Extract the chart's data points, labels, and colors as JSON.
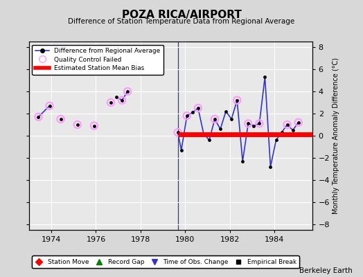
{
  "title": "POZA RICA/AIRPORT",
  "subtitle": "Difference of Station Temperature Data from Regional Average",
  "ylabel": "Monthly Temperature Anomaly Difference (°C)",
  "credit": "Berkeley Earth",
  "xlim": [
    1973.0,
    1985.7
  ],
  "ylim": [
    -8.5,
    8.5
  ],
  "yticks": [
    -8,
    -6,
    -4,
    -2,
    0,
    2,
    4,
    6,
    8
  ],
  "xticks": [
    1974,
    1976,
    1978,
    1980,
    1982,
    1984
  ],
  "bg_color": "#d8d8d8",
  "plot_bg": "#e8e8e8",
  "grid_color": "#ffffff",
  "line_color": "#3333cc",
  "marker_color": "black",
  "qc_color": "#ff99ff",
  "bias_color": "red",
  "bias_start": 1979.67,
  "bias_end": 1985.7,
  "bias_value": 0.12,
  "obs_change_x": 1979.67,
  "isolated_segments": [
    [
      [
        1973.42,
        1.7
      ],
      [
        1973.92,
        2.7
      ]
    ],
    [
      [
        1976.92,
        3.5
      ],
      [
        1977.17,
        3.2
      ],
      [
        1977.42,
        4.0
      ]
    ]
  ],
  "isolated_points": [
    [
      1973.42,
      1.7
    ],
    [
      1973.92,
      2.7
    ],
    [
      1974.42,
      1.5
    ],
    [
      1975.17,
      1.0
    ],
    [
      1975.92,
      0.9
    ],
    [
      1976.67,
      3.0
    ],
    [
      1976.92,
      3.5
    ],
    [
      1977.17,
      3.2
    ],
    [
      1977.42,
      4.0
    ]
  ],
  "connected_points": [
    [
      1979.67,
      0.3
    ],
    [
      1979.83,
      -1.3
    ],
    [
      1980.08,
      1.8
    ],
    [
      1980.33,
      2.1
    ],
    [
      1980.58,
      2.5
    ],
    [
      1980.83,
      0.2
    ],
    [
      1981.08,
      -0.4
    ],
    [
      1981.33,
      1.5
    ],
    [
      1981.58,
      0.6
    ],
    [
      1981.83,
      2.2
    ],
    [
      1982.08,
      1.5
    ],
    [
      1982.33,
      3.2
    ],
    [
      1982.58,
      -2.3
    ],
    [
      1982.83,
      1.1
    ],
    [
      1983.08,
      0.9
    ],
    [
      1983.33,
      1.1
    ],
    [
      1983.58,
      5.3
    ],
    [
      1983.83,
      -2.8
    ],
    [
      1984.08,
      -0.4
    ],
    [
      1984.33,
      0.3
    ],
    [
      1984.58,
      1.0
    ],
    [
      1984.83,
      0.5
    ],
    [
      1985.08,
      1.2
    ]
  ],
  "qc_failed_isolated": [
    [
      1973.42,
      1.7
    ],
    [
      1973.92,
      2.7
    ],
    [
      1974.42,
      1.5
    ],
    [
      1975.17,
      1.0
    ],
    [
      1975.92,
      0.9
    ],
    [
      1976.67,
      3.0
    ],
    [
      1977.17,
      3.2
    ],
    [
      1977.42,
      4.0
    ]
  ],
  "qc_failed_connected": [
    [
      1979.67,
      0.3
    ],
    [
      1980.08,
      1.8
    ],
    [
      1980.58,
      2.5
    ],
    [
      1981.33,
      1.5
    ],
    [
      1982.33,
      3.2
    ],
    [
      1982.83,
      1.1
    ],
    [
      1983.33,
      1.1
    ],
    [
      1984.58,
      1.0
    ],
    [
      1985.08,
      1.2
    ]
  ]
}
